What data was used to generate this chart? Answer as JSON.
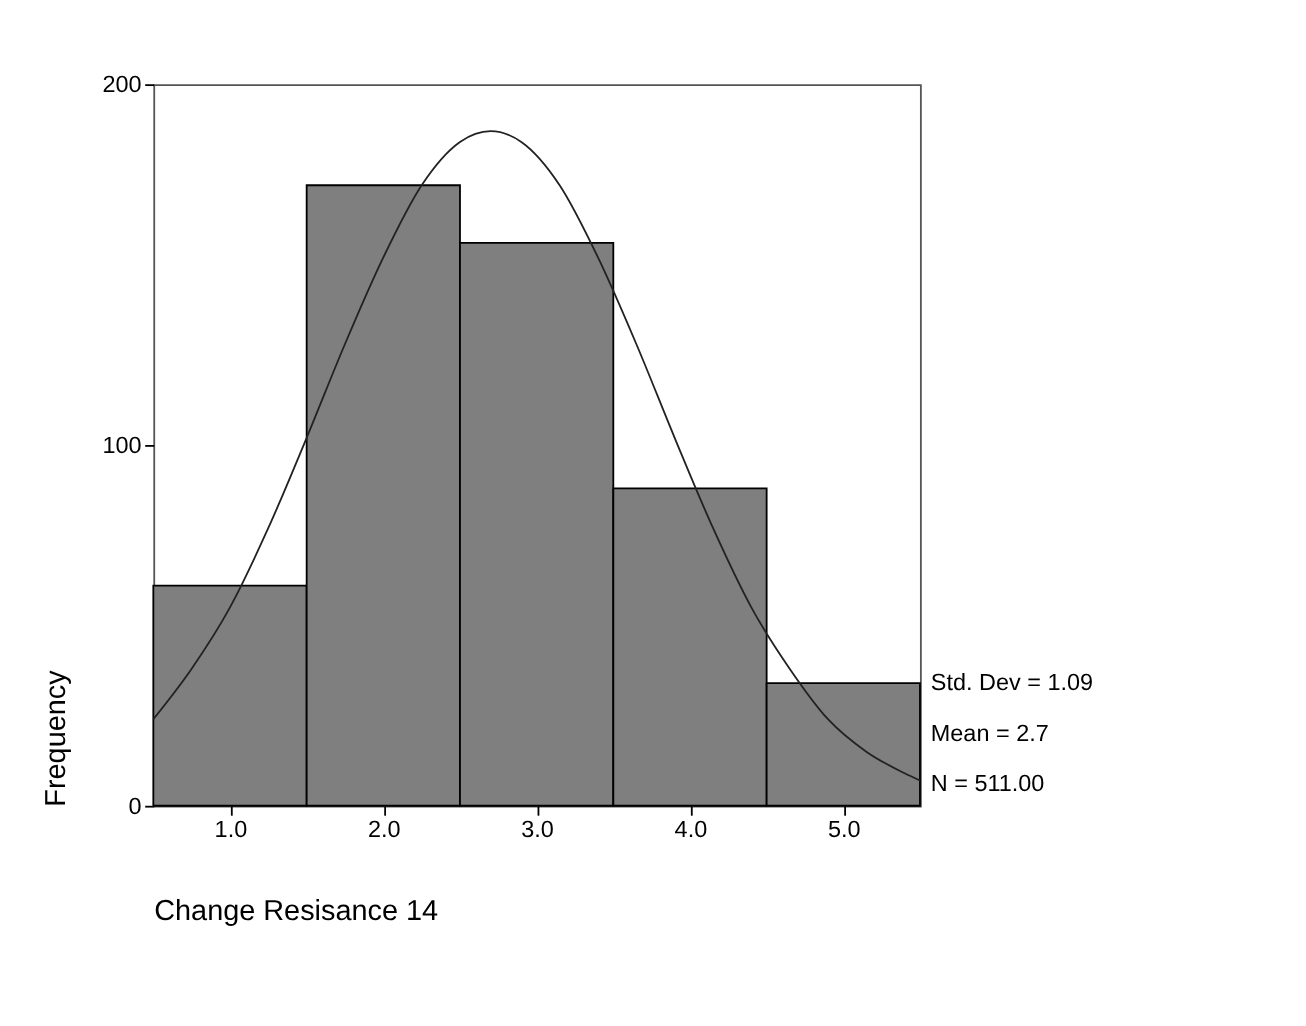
{
  "chart_data": {
    "type": "histogram",
    "xlabel": "Change Resisance 14",
    "ylabel": "Frequency",
    "bins": [
      0.5,
      1.5,
      2.5,
      3.5,
      4.5,
      5.5
    ],
    "values": [
      61,
      172,
      156,
      88,
      34
    ],
    "color": "#7f7f7f",
    "series": [
      {
        "type": "line",
        "color": "#222222",
        "x": [
          0.5,
          0.75,
          1.0,
          1.25,
          1.5,
          1.75,
          2.0,
          2.25,
          2.5,
          2.7,
          2.9,
          3.15,
          3.4,
          3.65,
          3.9,
          4.15,
          4.4,
          4.65,
          4.9,
          5.15,
          5.4,
          5.5
        ],
        "values": [
          24,
          38,
          55,
          77,
          102,
          128,
          152,
          172,
          184,
          187,
          184,
          172,
          152,
          128,
          102,
          77,
          55,
          38,
          24,
          15,
          9,
          7
        ]
      }
    ],
    "xlim": [
      0.5,
      5.5
    ],
    "xticks": [
      {
        "value": 1,
        "label": "1.0"
      },
      {
        "value": 2,
        "label": "2.0"
      },
      {
        "value": 3,
        "label": "3.0"
      },
      {
        "value": 4,
        "label": "4.0"
      },
      {
        "value": 5,
        "label": "5.0"
      }
    ],
    "ylim": [
      0,
      200
    ],
    "yticks": [
      0,
      100,
      200
    ],
    "grid": false,
    "annotations": [
      "Std. Dev = 1.09",
      "Mean = 2.7",
      "N = 511.00"
    ]
  }
}
